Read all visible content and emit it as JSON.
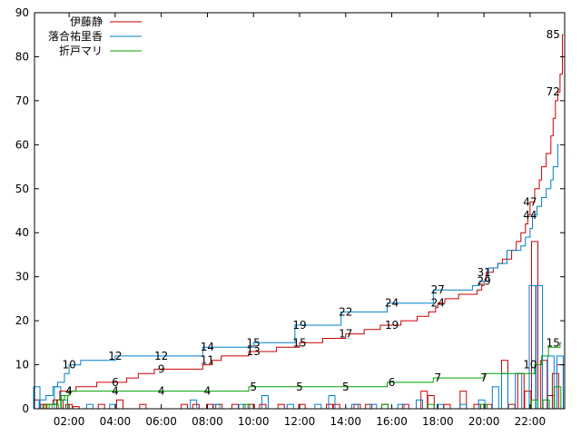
{
  "chart_data": {
    "type": "line",
    "xlim": [
      0.5,
      23.5
    ],
    "ylim": [
      0,
      90
    ],
    "x_ticks": [
      {
        "value": 2,
        "label": "02:00"
      },
      {
        "value": 4,
        "label": "04:00"
      },
      {
        "value": 6,
        "label": "06:00"
      },
      {
        "value": 8,
        "label": "08:00"
      },
      {
        "value": 10,
        "label": "10:00"
      },
      {
        "value": 12,
        "label": "12:00"
      },
      {
        "value": 14,
        "label": "14:00"
      },
      {
        "value": 16,
        "label": "16:00"
      },
      {
        "value": 18,
        "label": "18:00"
      },
      {
        "value": 20,
        "label": "20:00"
      },
      {
        "value": 22,
        "label": "22:00"
      }
    ],
    "y_ticks": [
      0,
      10,
      20,
      30,
      40,
      50,
      60,
      70,
      80,
      90
    ],
    "grid": false,
    "legend_position": "top-left",
    "series": [
      {
        "name": "伊藤静",
        "color": "#cc0000",
        "steps": [
          [
            0.5,
            0
          ],
          [
            0.9,
            1
          ],
          [
            1.3,
            2
          ],
          [
            1.6,
            4
          ],
          [
            2.3,
            5
          ],
          [
            3.2,
            6
          ],
          [
            4.5,
            7
          ],
          [
            5.0,
            8
          ],
          [
            5.7,
            9
          ],
          [
            7.8,
            10
          ],
          [
            8.2,
            11
          ],
          [
            8.6,
            12
          ],
          [
            9.8,
            13
          ],
          [
            10.2,
            13
          ],
          [
            11.0,
            14
          ],
          [
            12.0,
            15
          ],
          [
            13.0,
            16
          ],
          [
            14.0,
            17
          ],
          [
            14.8,
            18
          ],
          [
            15.5,
            19
          ],
          [
            16.4,
            20
          ],
          [
            17.1,
            21
          ],
          [
            17.6,
            22
          ],
          [
            17.9,
            23
          ],
          [
            18.0,
            24
          ],
          [
            18.3,
            25
          ],
          [
            18.9,
            26
          ],
          [
            19.7,
            27
          ],
          [
            19.9,
            28
          ],
          [
            20.0,
            29
          ],
          [
            20.1,
            31
          ],
          [
            20.4,
            32
          ],
          [
            20.6,
            33
          ],
          [
            20.8,
            34
          ],
          [
            21.2,
            36
          ],
          [
            21.4,
            38
          ],
          [
            21.6,
            40
          ],
          [
            21.8,
            42
          ],
          [
            21.9,
            44
          ],
          [
            22.0,
            47
          ],
          [
            22.2,
            50
          ],
          [
            22.4,
            52
          ],
          [
            22.5,
            55
          ],
          [
            22.7,
            58
          ],
          [
            22.9,
            62
          ],
          [
            23.0,
            66
          ],
          [
            23.1,
            70
          ],
          [
            23.2,
            72
          ],
          [
            23.3,
            76
          ],
          [
            23.4,
            85
          ]
        ],
        "labels": [
          {
            "x": 2.0,
            "y": 4,
            "text": "4"
          },
          {
            "x": 4.0,
            "y": 6,
            "text": "6"
          },
          {
            "x": 6.0,
            "y": 9,
            "text": "9"
          },
          {
            "x": 8.0,
            "y": 11,
            "text": "11"
          },
          {
            "x": 10.0,
            "y": 13,
            "text": "13"
          },
          {
            "x": 12.0,
            "y": 15,
            "text": "15"
          },
          {
            "x": 14.0,
            "y": 17,
            "text": "17"
          },
          {
            "x": 16.0,
            "y": 19,
            "text": "19"
          },
          {
            "x": 18.0,
            "y": 24,
            "text": "24"
          },
          {
            "x": 20.0,
            "y": 31,
            "text": "31"
          },
          {
            "x": 22.0,
            "y": 47,
            "text": "47"
          },
          {
            "x": 23.0,
            "y": 72,
            "text": "72"
          },
          {
            "x": 23.0,
            "y": 85,
            "text": "85"
          }
        ],
        "bars": [
          [
            0.7,
            2
          ],
          [
            1.0,
            1
          ],
          [
            1.7,
            2
          ],
          [
            2.1,
            1
          ],
          [
            2.4,
            0.5
          ],
          [
            3.5,
            1
          ],
          [
            4.3,
            2
          ],
          [
            5.3,
            1
          ],
          [
            7.1,
            1
          ],
          [
            7.6,
            1
          ],
          [
            8.2,
            1
          ],
          [
            8.6,
            1
          ],
          [
            9.3,
            1
          ],
          [
            10.0,
            1
          ],
          [
            10.5,
            1
          ],
          [
            11.3,
            1
          ],
          [
            12.2,
            1
          ],
          [
            13.4,
            1
          ],
          [
            13.7,
            1
          ],
          [
            14.6,
            1
          ],
          [
            15.1,
            1
          ],
          [
            15.8,
            1
          ],
          [
            16.7,
            1
          ],
          [
            17.5,
            4
          ],
          [
            17.8,
            3
          ],
          [
            18.5,
            1
          ],
          [
            19.2,
            4
          ],
          [
            19.8,
            1
          ],
          [
            20.3,
            1
          ],
          [
            21.0,
            11
          ],
          [
            21.3,
            1
          ],
          [
            21.7,
            8
          ],
          [
            22.0,
            4
          ],
          [
            22.3,
            38
          ],
          [
            22.7,
            11
          ],
          [
            23.0,
            3
          ],
          [
            23.2,
            8
          ],
          [
            23.4,
            10
          ]
        ]
      },
      {
        "name": "落合祐里香",
        "color": "#0080cc",
        "steps": [
          [
            0.5,
            0
          ],
          [
            0.7,
            2
          ],
          [
            1.0,
            3
          ],
          [
            1.3,
            5
          ],
          [
            1.5,
            6
          ],
          [
            1.8,
            8
          ],
          [
            2.0,
            10
          ],
          [
            2.5,
            11
          ],
          [
            4.0,
            12
          ],
          [
            7.8,
            14
          ],
          [
            9.8,
            14
          ],
          [
            10.0,
            15
          ],
          [
            11.8,
            19
          ],
          [
            13.8,
            22
          ],
          [
            15.8,
            24
          ],
          [
            17.8,
            27
          ],
          [
            19.5,
            28
          ],
          [
            19.8,
            29
          ],
          [
            20.2,
            32
          ],
          [
            20.6,
            33
          ],
          [
            21.0,
            36
          ],
          [
            21.6,
            37
          ],
          [
            21.8,
            39
          ],
          [
            22.0,
            41
          ],
          [
            22.1,
            44
          ],
          [
            22.3,
            46
          ],
          [
            22.5,
            48
          ],
          [
            22.7,
            50
          ],
          [
            22.9,
            52
          ],
          [
            23.0,
            55
          ],
          [
            23.2,
            60
          ]
        ],
        "labels": [
          {
            "x": 2.0,
            "y": 10,
            "text": "10"
          },
          {
            "x": 4.0,
            "y": 12,
            "text": "12"
          },
          {
            "x": 6.0,
            "y": 12,
            "text": "12"
          },
          {
            "x": 8.0,
            "y": 14,
            "text": "14"
          },
          {
            "x": 10.0,
            "y": 15,
            "text": "15"
          },
          {
            "x": 12.0,
            "y": 19,
            "text": "19"
          },
          {
            "x": 14.0,
            "y": 22,
            "text": "22"
          },
          {
            "x": 16.0,
            "y": 24,
            "text": "24"
          },
          {
            "x": 18.0,
            "y": 27,
            "text": "27"
          },
          {
            "x": 20.0,
            "y": 29,
            "text": "29"
          },
          {
            "x": 22.0,
            "y": 44,
            "text": "44"
          }
        ],
        "bars": [
          [
            0.6,
            5
          ],
          [
            1.5,
            5
          ],
          [
            1.8,
            2
          ],
          [
            2.9,
            1
          ],
          [
            3.9,
            1
          ],
          [
            7.4,
            2
          ],
          [
            8.4,
            1
          ],
          [
            9.5,
            1
          ],
          [
            10.5,
            3
          ],
          [
            11.6,
            1
          ],
          [
            12.8,
            1
          ],
          [
            13.4,
            3
          ],
          [
            14.4,
            1
          ],
          [
            15.2,
            1
          ],
          [
            16.4,
            1
          ],
          [
            17.2,
            2
          ],
          [
            18.1,
            1
          ],
          [
            19.1,
            1
          ],
          [
            19.9,
            2
          ],
          [
            20.5,
            5
          ],
          [
            20.9,
            8
          ],
          [
            21.5,
            8
          ],
          [
            22.1,
            28
          ],
          [
            22.4,
            28
          ],
          [
            22.9,
            12
          ],
          [
            23.3,
            12
          ]
        ]
      },
      {
        "name": "折戸マリ",
        "color": "#00a000",
        "steps": [
          [
            0.5,
            0
          ],
          [
            1.0,
            1
          ],
          [
            1.5,
            2
          ],
          [
            1.8,
            3
          ],
          [
            2.0,
            4
          ],
          [
            9.8,
            5
          ],
          [
            15.8,
            6
          ],
          [
            17.8,
            7
          ],
          [
            20.0,
            8
          ],
          [
            22.2,
            10
          ],
          [
            22.5,
            12
          ],
          [
            22.8,
            14
          ],
          [
            23.3,
            15
          ]
        ],
        "labels": [
          {
            "x": 2.0,
            "y": 4,
            "text": "4"
          },
          {
            "x": 4.0,
            "y": 4,
            "text": "4"
          },
          {
            "x": 6.0,
            "y": 4,
            "text": "4"
          },
          {
            "x": 8.0,
            "y": 4,
            "text": "4"
          },
          {
            "x": 10.0,
            "y": 5,
            "text": "5"
          },
          {
            "x": 12.0,
            "y": 5,
            "text": "5"
          },
          {
            "x": 14.0,
            "y": 5,
            "text": "5"
          },
          {
            "x": 16.0,
            "y": 6,
            "text": "6"
          },
          {
            "x": 18.0,
            "y": 7,
            "text": "7"
          },
          {
            "x": 20.0,
            "y": 7,
            "text": "7"
          },
          {
            "x": 22.0,
            "y": 10,
            "text": "10"
          },
          {
            "x": 23.0,
            "y": 15,
            "text": "15"
          }
        ],
        "bars": [
          [
            0.9,
            1
          ],
          [
            1.3,
            1
          ],
          [
            1.7,
            3
          ],
          [
            9.6,
            1
          ],
          [
            15.6,
            1
          ],
          [
            17.6,
            1
          ],
          [
            19.9,
            1
          ],
          [
            22.1,
            2
          ],
          [
            22.6,
            2
          ],
          [
            23.1,
            5
          ]
        ]
      }
    ]
  }
}
